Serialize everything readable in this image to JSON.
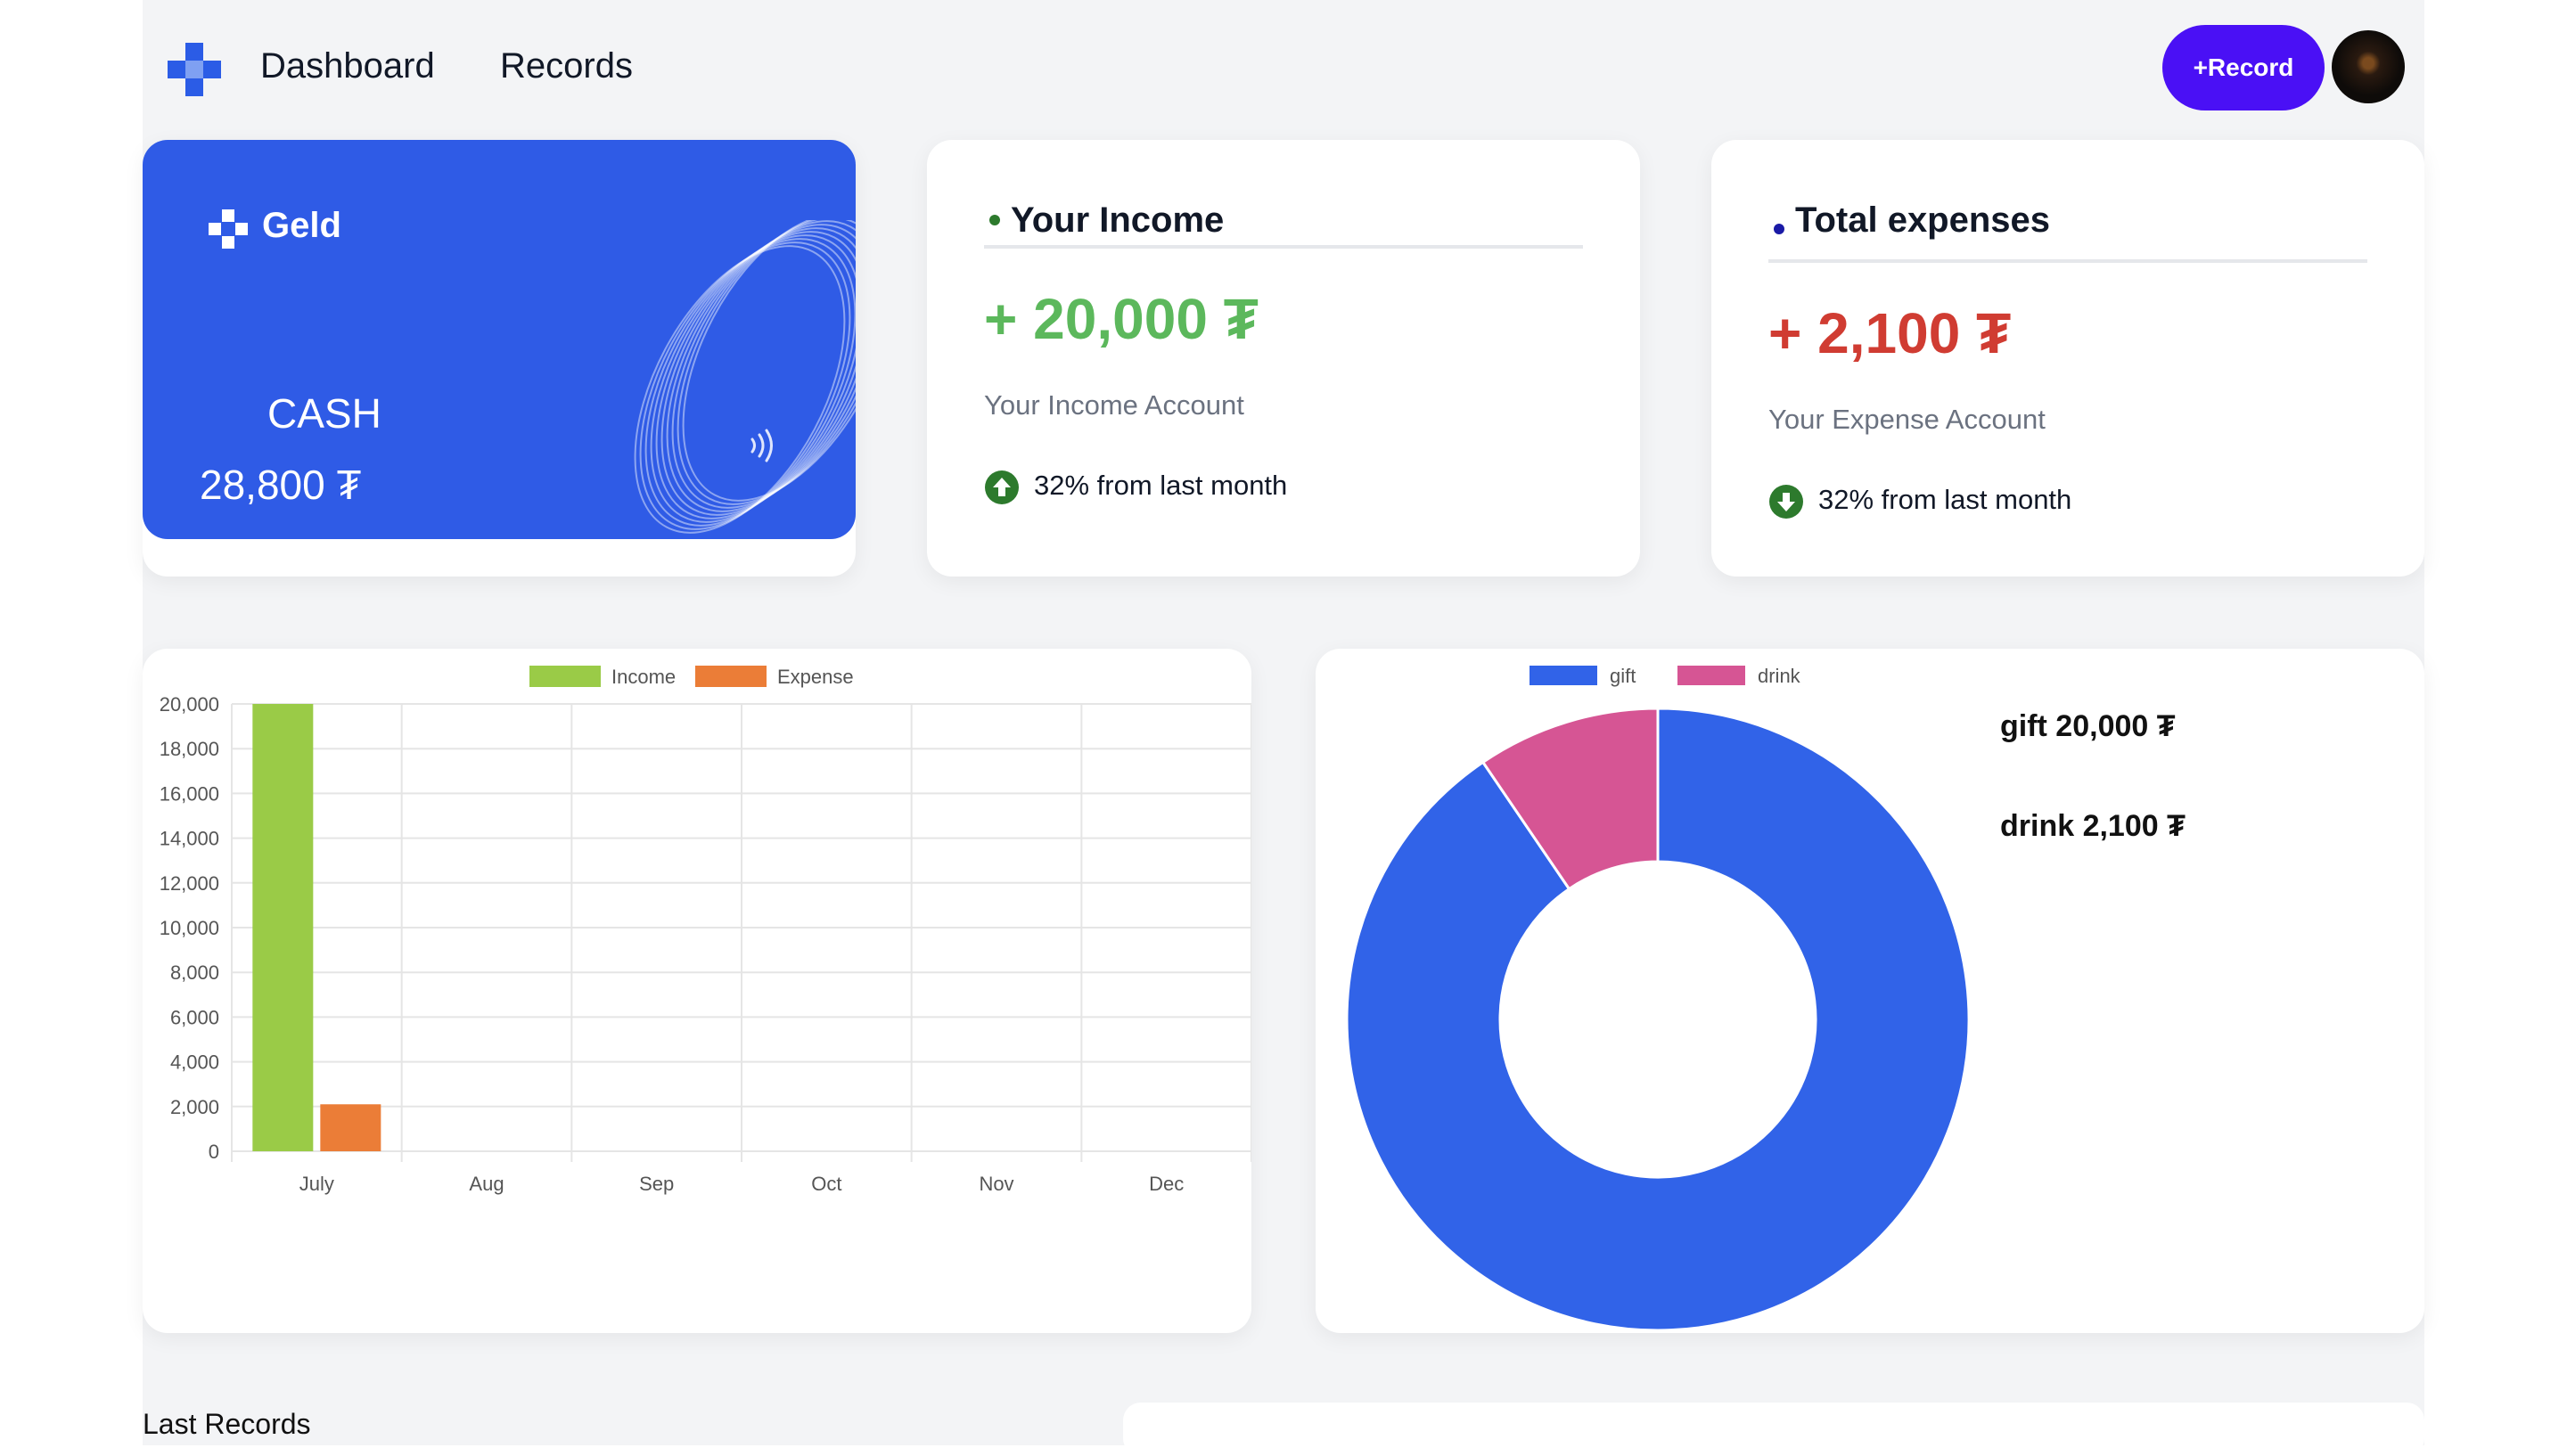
{
  "header": {
    "nav": [
      {
        "label": "Dashboard"
      },
      {
        "label": "Records"
      }
    ],
    "record_button": "+Record"
  },
  "cash_card": {
    "brand": "Geld",
    "label": "CASH",
    "amount": "28,800 ₮"
  },
  "income_card": {
    "title": "Your Income",
    "amount": "+ 20,000 ₮",
    "subtitle": "Your Income Account",
    "trend": "32% from last month",
    "accent": "#5cb85c",
    "dot": "#2d7a2d"
  },
  "expense_card": {
    "title": "Total expenses",
    "amount": "+ 2,100 ₮",
    "subtitle": "Your Expense Account",
    "trend": "32% from last month",
    "accent": "#d03c32",
    "dot": "#1a1aa6"
  },
  "chart_data": [
    {
      "type": "bar",
      "categories": [
        "July",
        "Aug",
        "Sep",
        "Oct",
        "Nov",
        "Dec"
      ],
      "series": [
        {
          "name": "Income",
          "values": [
            20000,
            0,
            0,
            0,
            0,
            0
          ],
          "color": "#9acb47"
        },
        {
          "name": "Expense",
          "values": [
            2100,
            0,
            0,
            0,
            0,
            0
          ],
          "color": "#eb7d37"
        }
      ],
      "yticks": [
        "0",
        "2,000",
        "4,000",
        "6,000",
        "8,000",
        "10,000",
        "12,000",
        "14,000",
        "16,000",
        "18,000",
        "20,000"
      ],
      "ylim": [
        0,
        20000
      ],
      "grid": true,
      "legend": "top-center"
    },
    {
      "type": "pie",
      "donut": true,
      "labels": [
        "gift",
        "drink"
      ],
      "values": [
        20000,
        2100
      ],
      "colors": [
        "#3163e8",
        "#d65594"
      ],
      "legend": "top-center"
    }
  ],
  "pie_labels": [
    {
      "text": "gift 20,000 ₮"
    },
    {
      "text": "drink 2,100 ₮"
    }
  ],
  "last_records": {
    "title": "Last Records"
  }
}
